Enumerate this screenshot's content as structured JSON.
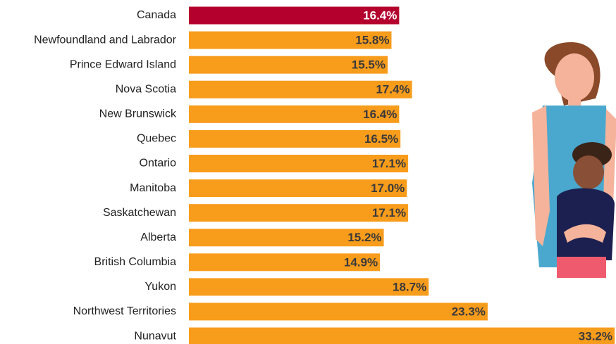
{
  "chart_data": {
    "type": "bar",
    "categories": [
      "Canada",
      "Newfoundland and Labrador",
      "Prince Edward Island",
      "Nova Scotia",
      "New Brunswick",
      "Quebec",
      "Ontario",
      "Manitoba",
      "Saskatchewan",
      "Alberta",
      "British Columbia",
      "Yukon",
      "Northwest Territories",
      "Nunavut"
    ],
    "values": [
      16.4,
      15.8,
      15.5,
      17.4,
      16.4,
      16.5,
      17.1,
      17.0,
      17.1,
      15.2,
      14.9,
      18.7,
      23.3,
      33.2
    ],
    "value_labels": [
      "16.4%",
      "15.8%",
      "15.5%",
      "17.4%",
      "16.4%",
      "16.5%",
      "17.1%",
      "17.0%",
      "17.1%",
      "15.2%",
      "14.9%",
      "18.7%",
      "23.3%",
      "33.2%"
    ],
    "colors": [
      "#b3002d",
      "#f89c1c",
      "#f89c1c",
      "#f89c1c",
      "#f89c1c",
      "#f89c1c",
      "#f89c1c",
      "#f89c1c",
      "#f89c1c",
      "#f89c1c",
      "#f89c1c",
      "#f89c1c",
      "#f89c1c",
      "#f89c1c"
    ]
  }
}
